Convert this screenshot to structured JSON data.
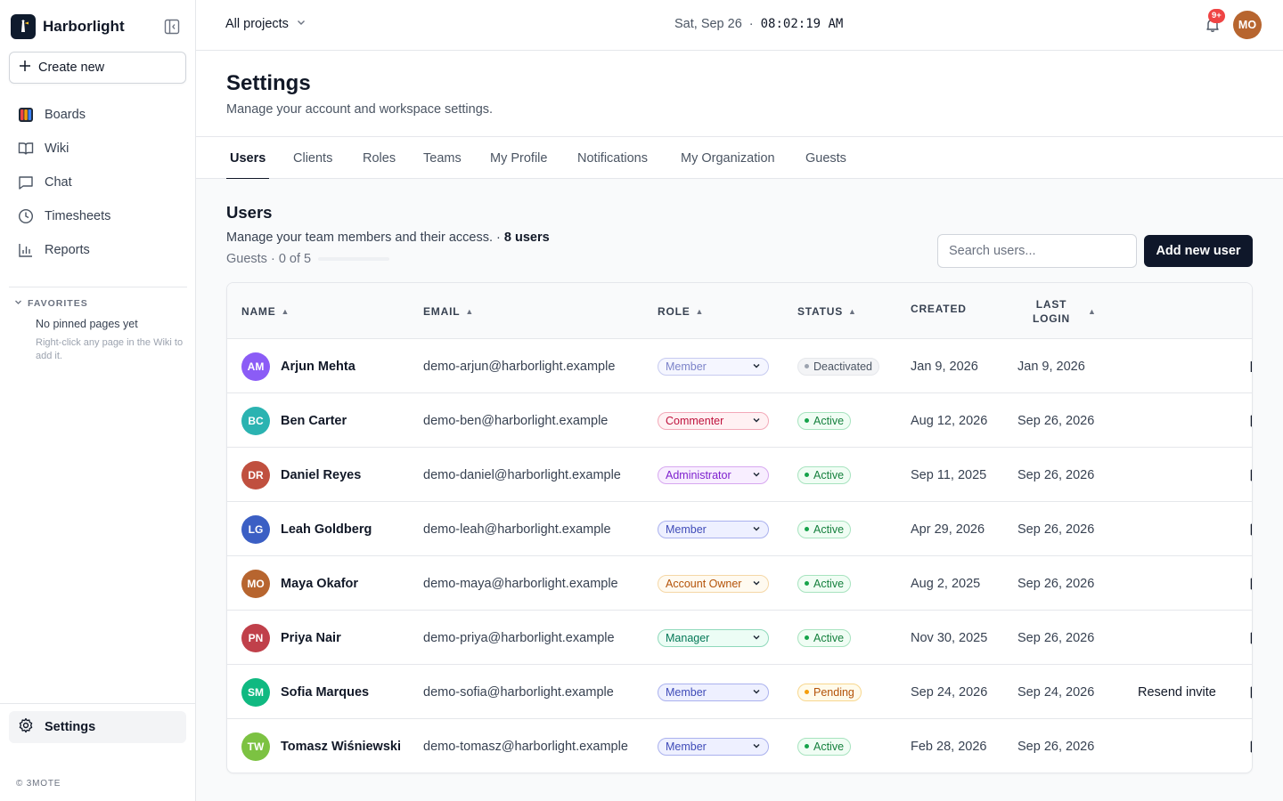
{
  "app": {
    "name": "Harborlight"
  },
  "sidebar": {
    "create_label": "Create new",
    "items": [
      {
        "label": "Boards",
        "icon": "boards-icon"
      },
      {
        "label": "Wiki",
        "icon": "book-icon"
      },
      {
        "label": "Chat",
        "icon": "chat-icon"
      },
      {
        "label": "Timesheets",
        "icon": "clock-icon"
      },
      {
        "label": "Reports",
        "icon": "bar-chart-icon"
      }
    ],
    "favorites_header": "FAVORITES",
    "favorites_empty": "No pinned pages yet",
    "favorites_hint": "Right-click any page in the Wiki to add it.",
    "settings_label": "Settings",
    "footer": "© 3MOTE"
  },
  "topbar": {
    "project_label": "All projects",
    "date": "Sat, Sep 26",
    "separator": "·",
    "time": "08:02:19 AM",
    "notification_badge": "9+",
    "user_initials": "MO",
    "user_avatar_color": "#b7652f"
  },
  "page": {
    "title": "Settings",
    "subtitle": "Manage your account and workspace settings."
  },
  "tabs": [
    {
      "label": "Users",
      "active": true
    },
    {
      "label": "Clients"
    },
    {
      "label": "Roles"
    },
    {
      "label": "Teams"
    },
    {
      "label": "My Profile"
    },
    {
      "label": "Notifications"
    },
    {
      "label": "My Organization"
    },
    {
      "label": "Guests"
    }
  ],
  "users_section": {
    "title": "Users",
    "subtitle": "Manage your team members and their access.",
    "separator": "·",
    "count_label": "8 users",
    "guests_label": "Guests · 0 of 5",
    "guests_fraction": 0,
    "search_placeholder": "Search users...",
    "add_button": "Add new user"
  },
  "table": {
    "headers": {
      "name": "NAME",
      "email": "EMAIL",
      "role": "ROLE",
      "status": "STATUS",
      "created": "CREATED",
      "last_login_line1": "LAST",
      "last_login_line2": "LOGIN"
    },
    "rows": [
      {
        "initials": "AM",
        "avatar_color": "#8b5cf6",
        "name": "Arjun Mehta",
        "email": "demo-arjun@harborlight.example",
        "role": "Member",
        "role_style": "member-muted",
        "status": "Deactivated",
        "status_style": "deactivated",
        "created": "Jan 9, 2026",
        "last_login": "Jan 9, 2026",
        "action": ""
      },
      {
        "initials": "BC",
        "avatar_color": "#2bb3b1",
        "name": "Ben Carter",
        "email": "demo-ben@harborlight.example",
        "role": "Commenter",
        "role_style": "commenter",
        "status": "Active",
        "status_style": "active",
        "created": "Aug 12, 2026",
        "last_login": "Sep 26, 2026",
        "action": ""
      },
      {
        "initials": "DR",
        "avatar_color": "#c0503f",
        "name": "Daniel Reyes",
        "email": "demo-daniel@harborlight.example",
        "role": "Administrator",
        "role_style": "administrator",
        "status": "Active",
        "status_style": "active",
        "created": "Sep 11, 2025",
        "last_login": "Sep 26, 2026",
        "action": ""
      },
      {
        "initials": "LG",
        "avatar_color": "#3b5fc4",
        "name": "Leah Goldberg",
        "email": "demo-leah@harborlight.example",
        "role": "Member",
        "role_style": "member",
        "status": "Active",
        "status_style": "active",
        "created": "Apr 29, 2026",
        "last_login": "Sep 26, 2026",
        "action": ""
      },
      {
        "initials": "MO",
        "avatar_color": "#b7652f",
        "name": "Maya Okafor",
        "email": "demo-maya@harborlight.example",
        "role": "Account Owner",
        "role_style": "owner",
        "status": "Active",
        "status_style": "active",
        "created": "Aug 2, 2025",
        "last_login": "Sep 26, 2026",
        "action": ""
      },
      {
        "initials": "PN",
        "avatar_color": "#c0404a",
        "name": "Priya Nair",
        "email": "demo-priya@harborlight.example",
        "role": "Manager",
        "role_style": "manager",
        "status": "Active",
        "status_style": "active",
        "created": "Nov 30, 2025",
        "last_login": "Sep 26, 2026",
        "action": ""
      },
      {
        "initials": "SM",
        "avatar_color": "#10b981",
        "name": "Sofia Marques",
        "email": "demo-sofia@harborlight.example",
        "role": "Member",
        "role_style": "member",
        "status": "Pending",
        "status_style": "pending",
        "created": "Sep 24, 2026",
        "last_login": "Sep 24, 2026",
        "action": "Resend invite"
      },
      {
        "initials": "TW",
        "avatar_color": "#7cc242",
        "name": "Tomasz Wiśniewski",
        "email": "demo-tomasz@harborlight.example",
        "role": "Member",
        "role_style": "member",
        "status": "Active",
        "status_style": "active",
        "created": "Feb 28, 2026",
        "last_login": "Sep 26, 2026",
        "action": ""
      }
    ]
  },
  "styles": {
    "roles": {
      "member-muted": {
        "bg": "#f5f6ff",
        "border": "#c7cbf0",
        "text": "#7c83c9"
      },
      "member": {
        "bg": "#eef0ff",
        "border": "#aab1ee",
        "text": "#3f4bb8"
      },
      "commenter": {
        "bg": "#fff1f3",
        "border": "#f3a9b8",
        "text": "#be123c"
      },
      "administrator": {
        "bg": "#f8eeff",
        "border": "#d7a8f0",
        "text": "#7e22ce"
      },
      "owner": {
        "bg": "#fffaf0",
        "border": "#f5d7a6",
        "text": "#b45309"
      },
      "manager": {
        "bg": "#ecfdf5",
        "border": "#8fd9bb",
        "text": "#047857"
      }
    },
    "statuses": {
      "deactivated": {
        "bg": "#f3f4f6",
        "border": "#e5e7eb",
        "text": "#4b5563",
        "dot": "#9ca3af"
      },
      "active": {
        "bg": "#f0fdf4",
        "border": "#a7e3bf",
        "text": "#15803d",
        "dot": "#16a34a"
      },
      "pending": {
        "bg": "#fffbeb",
        "border": "#f8d78e",
        "text": "#b45309",
        "dot": "#f59e0b"
      }
    }
  }
}
